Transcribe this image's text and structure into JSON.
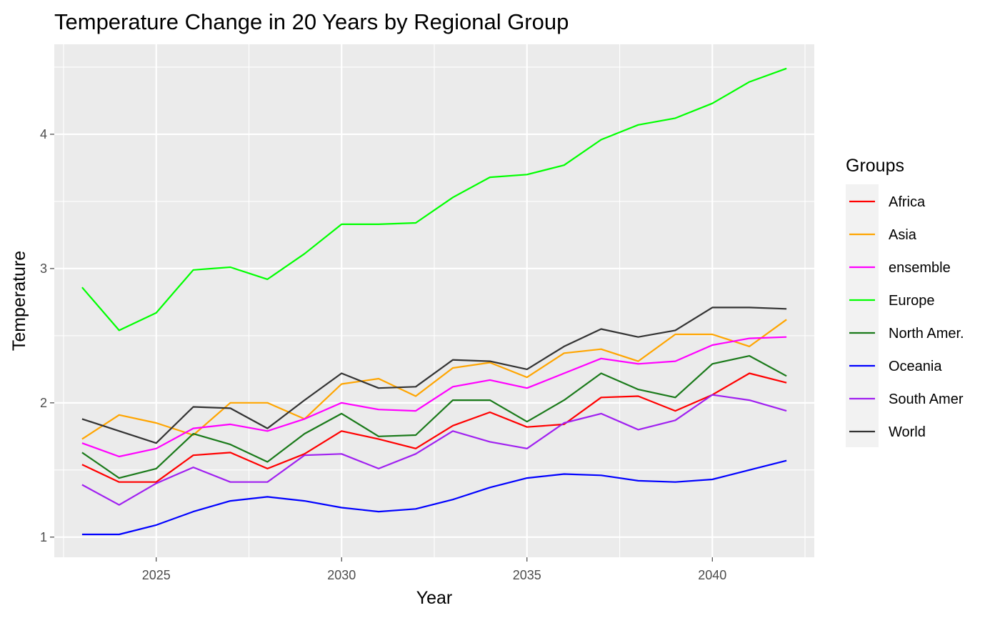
{
  "chart_data": {
    "type": "line",
    "title": "Temperature Change in 20 Years by Regional Group",
    "xlabel": "Year",
    "ylabel": "Temperature",
    "xlim": [
      2022.25,
      2042.75
    ],
    "ylim": [
      0.85,
      4.67
    ],
    "x_ticks": [
      2025,
      2030,
      2035,
      2040
    ],
    "x_tick_labels": [
      "2025",
      "2030",
      "2035",
      "2040"
    ],
    "y_ticks": [
      1,
      2,
      3,
      4
    ],
    "y_tick_labels": [
      "1",
      "2",
      "3",
      "4"
    ],
    "grid": true,
    "legend_title": "Groups",
    "legend_position": "right",
    "x": [
      2023,
      2024,
      2025,
      2026,
      2027,
      2028,
      2029,
      2030,
      2031,
      2032,
      2033,
      2034,
      2035,
      2036,
      2037,
      2038,
      2039,
      2040,
      2041,
      2042
    ],
    "series": [
      {
        "name": "Africa",
        "color": "#ff0000",
        "values": [
          1.54,
          1.41,
          1.41,
          1.61,
          1.63,
          1.51,
          1.62,
          1.79,
          1.73,
          1.66,
          1.83,
          1.93,
          1.82,
          1.84,
          2.04,
          2.05,
          1.94,
          2.06,
          2.22,
          2.15
        ]
      },
      {
        "name": "Asia",
        "color": "#ffa500",
        "values": [
          1.73,
          1.91,
          1.85,
          1.76,
          2.0,
          2.0,
          1.88,
          2.14,
          2.18,
          2.05,
          2.26,
          2.3,
          2.19,
          2.37,
          2.4,
          2.31,
          2.51,
          2.51,
          2.42,
          2.62
        ]
      },
      {
        "name": "ensemble",
        "color": "#ff00ff",
        "values": [
          1.7,
          1.6,
          1.66,
          1.81,
          1.84,
          1.79,
          1.88,
          2.0,
          1.95,
          1.94,
          2.12,
          2.17,
          2.11,
          2.22,
          2.33,
          2.29,
          2.31,
          2.43,
          2.48,
          2.49
        ]
      },
      {
        "name": "Europe",
        "color": "#00ff00",
        "values": [
          2.86,
          2.54,
          2.67,
          2.99,
          3.01,
          2.92,
          3.11,
          3.33,
          3.33,
          3.34,
          3.53,
          3.68,
          3.7,
          3.77,
          3.96,
          4.07,
          4.12,
          4.23,
          4.39,
          4.49
        ]
      },
      {
        "name": "North Amer.",
        "color": "#1a7a1a",
        "values": [
          1.63,
          1.44,
          1.51,
          1.77,
          1.69,
          1.56,
          1.77,
          1.92,
          1.75,
          1.76,
          2.02,
          2.02,
          1.86,
          2.02,
          2.22,
          2.1,
          2.04,
          2.29,
          2.35,
          2.2
        ]
      },
      {
        "name": "Oceania",
        "color": "#0000ff",
        "values": [
          1.02,
          1.02,
          1.09,
          1.19,
          1.27,
          1.3,
          1.27,
          1.22,
          1.19,
          1.21,
          1.28,
          1.37,
          1.44,
          1.47,
          1.46,
          1.42,
          1.41,
          1.43,
          1.5,
          1.57
        ]
      },
      {
        "name": "South Amer",
        "color": "#a020f0",
        "values": [
          1.39,
          1.24,
          1.4,
          1.52,
          1.41,
          1.41,
          1.61,
          1.62,
          1.51,
          1.62,
          1.79,
          1.71,
          1.66,
          1.85,
          1.92,
          1.8,
          1.87,
          2.06,
          2.02,
          1.94
        ]
      },
      {
        "name": "World",
        "color": "#333333",
        "values": [
          1.88,
          1.79,
          1.7,
          1.97,
          1.96,
          1.81,
          2.02,
          2.22,
          2.11,
          2.12,
          2.32,
          2.31,
          2.25,
          2.42,
          2.55,
          2.49,
          2.54,
          2.71,
          2.71,
          2.7
        ]
      }
    ]
  }
}
